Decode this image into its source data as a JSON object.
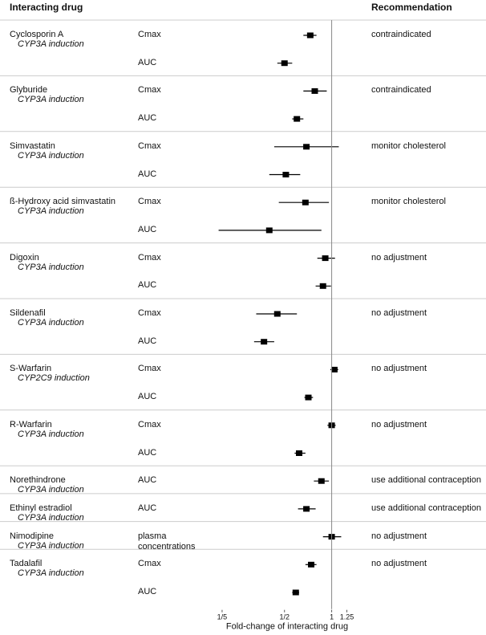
{
  "chart_data": {
    "type": "forest",
    "header_left": "Interacting drug",
    "header_right": "Recommendation",
    "xlabel": "Fold-change of interacting drug",
    "log_x": true,
    "xlim": [
      0.18,
      1.5
    ],
    "xticks": [
      {
        "value": 0.2,
        "label": "1/5"
      },
      {
        "value": 0.5,
        "label": "1/2"
      },
      1,
      1.25
    ],
    "reference": 1,
    "color": "#000000",
    "drugs": [
      {
        "name": "Cyclosporin A",
        "induction": "CYP3A induction",
        "recommendation": "contraindicated",
        "measures": [
          {
            "label": "Cmax",
            "value": 0.73,
            "lo": 0.66,
            "hi": 0.8
          },
          {
            "label": "AUC",
            "value": 0.5,
            "lo": 0.45,
            "hi": 0.56
          }
        ]
      },
      {
        "name": "Glyburide",
        "induction": "CYP3A induction",
        "recommendation": "contraindicated",
        "measures": [
          {
            "label": "Cmax",
            "value": 0.78,
            "lo": 0.66,
            "hi": 0.93
          },
          {
            "label": "AUC",
            "value": 0.6,
            "lo": 0.56,
            "hi": 0.66
          }
        ]
      },
      {
        "name": "Simvastatin",
        "induction": "CYP3A induction",
        "recommendation": "monitor cholesterol",
        "measures": [
          {
            "label": "Cmax",
            "value": 0.69,
            "lo": 0.43,
            "hi": 1.11
          },
          {
            "label": "AUC",
            "value": 0.51,
            "lo": 0.4,
            "hi": 0.63
          }
        ]
      },
      {
        "name": "ß-Hydroxy acid simvastatin",
        "induction": "CYP3A induction",
        "recommendation": "monitor cholesterol",
        "measures": [
          {
            "label": "Cmax",
            "value": 0.68,
            "lo": 0.46,
            "hi": 0.96
          },
          {
            "label": "AUC",
            "value": 0.4,
            "lo": 0.19,
            "hi": 0.86
          }
        ]
      },
      {
        "name": "Digoxin",
        "induction": "CYP3A induction",
        "recommendation": "no adjustment",
        "measures": [
          {
            "label": "Cmax",
            "value": 0.91,
            "lo": 0.81,
            "hi": 1.05
          },
          {
            "label": "AUC",
            "value": 0.88,
            "lo": 0.79,
            "hi": 0.99
          }
        ]
      },
      {
        "name": "Sildenafil",
        "induction": "CYP3A induction",
        "recommendation": "no adjustment",
        "measures": [
          {
            "label": "Cmax",
            "value": 0.45,
            "lo": 0.33,
            "hi": 0.6
          },
          {
            "label": "AUC",
            "value": 0.37,
            "lo": 0.32,
            "hi": 0.43
          }
        ]
      },
      {
        "name": "S-Warfarin",
        "induction": "CYP2C9 induction",
        "recommendation": "no adjustment",
        "measures": [
          {
            "label": "Cmax",
            "value": 1.04,
            "lo": 0.98,
            "hi": 1.1
          },
          {
            "label": "AUC",
            "value": 0.71,
            "lo": 0.67,
            "hi": 0.76
          }
        ]
      },
      {
        "name": "R-Warfarin",
        "induction": "CYP3A induction",
        "recommendation": "no adjustment",
        "measures": [
          {
            "label": "Cmax",
            "value": 1.0,
            "lo": 0.94,
            "hi": 1.06
          },
          {
            "label": "AUC",
            "value": 0.62,
            "lo": 0.58,
            "hi": 0.68
          }
        ]
      },
      {
        "name": "Norethindrone",
        "induction": "CYP3A induction",
        "recommendation": "use additional contraception",
        "measures": [
          {
            "label": "AUC",
            "value": 0.86,
            "lo": 0.77,
            "hi": 0.96
          }
        ]
      },
      {
        "name": "Ethinyl estradiol",
        "induction": "CYP3A induction",
        "recommendation": "use additional contraception",
        "measures": [
          {
            "label": "AUC",
            "value": 0.69,
            "lo": 0.61,
            "hi": 0.79
          }
        ]
      },
      {
        "name": "Nimodipine",
        "induction": "CYP3A induction",
        "recommendation": "no adjustment",
        "measures": [
          {
            "label": "plasma concentrations",
            "value": 1.0,
            "lo": 0.88,
            "hi": 1.15
          }
        ]
      },
      {
        "name": "Tadalafil",
        "induction": "CYP3A induction",
        "recommendation": "no adjustment",
        "measures": [
          {
            "label": "Cmax",
            "value": 0.74,
            "lo": 0.68,
            "hi": 0.8
          },
          {
            "label": "AUC",
            "value": 0.59,
            "lo": 0.56,
            "hi": 0.62
          }
        ]
      }
    ]
  }
}
